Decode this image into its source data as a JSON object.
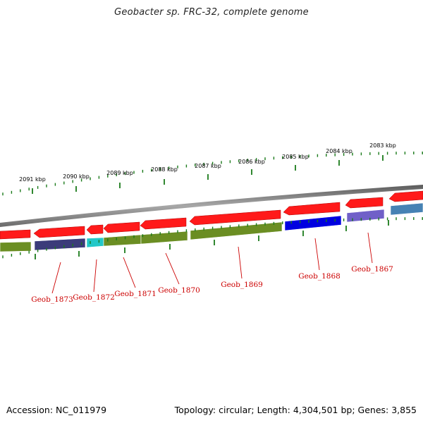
{
  "title": "Geobacter sp. FRC-32, complete genome",
  "footer": {
    "accession": "Accession: NC_011979",
    "summary": "Topology: circular; Length: 4,304,501 bp; Genes: 3,855"
  },
  "kbp_labels": [
    "2091 kbp",
    "2090 kbp",
    "2089 kbp",
    "2088 kbp",
    "2087 kbp",
    "2086 kbp",
    "2085 kbp",
    "2084 kbp",
    "2083 kbp"
  ],
  "gene_labels": [
    "Geob_1873",
    "Geob_1872",
    "Geob_1871",
    "Geob_1870",
    "Geob_1869",
    "Geob_1868",
    "Geob_1867"
  ],
  "colors": {
    "forward_gene": "#ff1a1a",
    "cog_green": "#6b8e23",
    "cog_navy": "#3b3b7a",
    "cog_cyan": "#22c8c8",
    "cog_blue": "#0000e0",
    "cog_lavender": "#7060c8",
    "cog_steel": "#4682b4",
    "ticks": "#1a7a1a",
    "backbone": "#808080",
    "label": "#cc0000"
  }
}
